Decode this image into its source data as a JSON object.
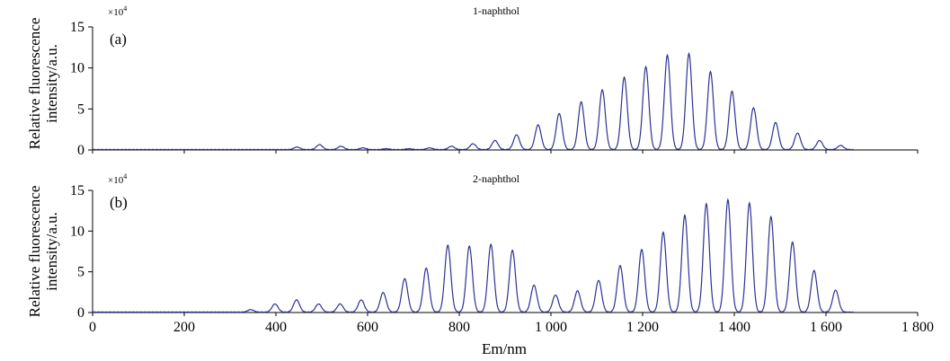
{
  "chart_data": [
    {
      "type": "line",
      "panel": "(a)",
      "title": "1-naphthol",
      "multiplier": "×10",
      "multiplier_exp": "4",
      "xlabel": "Em/nm",
      "ylabel": "Relative fluorescence intensity/a.u.",
      "xlim": [
        0,
        1800
      ],
      "ylim": [
        0,
        15
      ],
      "yticks": [
        0,
        5,
        10,
        15
      ],
      "ytick_labels": [
        "0",
        "5",
        "10",
        "15"
      ],
      "color": "#2e3192",
      "series": [
        {
          "peaks": [
            {
              "x": 446,
              "y": 0.3
            },
            {
              "x": 495,
              "y": 0.6
            },
            {
              "x": 542,
              "y": 0.4
            },
            {
              "x": 590,
              "y": 0.2
            },
            {
              "x": 640,
              "y": 0.1
            },
            {
              "x": 690,
              "y": 0.1
            },
            {
              "x": 735,
              "y": 0.2
            },
            {
              "x": 783,
              "y": 0.4
            },
            {
              "x": 830,
              "y": 0.7
            },
            {
              "x": 878,
              "y": 1.1
            },
            {
              "x": 925,
              "y": 1.8
            },
            {
              "x": 972,
              "y": 3.0
            },
            {
              "x": 1018,
              "y": 4.4
            },
            {
              "x": 1066,
              "y": 5.8
            },
            {
              "x": 1112,
              "y": 7.3
            },
            {
              "x": 1160,
              "y": 8.8
            },
            {
              "x": 1207,
              "y": 10.1
            },
            {
              "x": 1254,
              "y": 11.5
            },
            {
              "x": 1301,
              "y": 11.7
            },
            {
              "x": 1348,
              "y": 9.5
            },
            {
              "x": 1395,
              "y": 7.1
            },
            {
              "x": 1442,
              "y": 5.1
            },
            {
              "x": 1490,
              "y": 3.3
            },
            {
              "x": 1538,
              "y": 2.0
            },
            {
              "x": 1586,
              "y": 1.1
            },
            {
              "x": 1632,
              "y": 0.5
            }
          ]
        }
      ]
    },
    {
      "type": "line",
      "panel": "(b)",
      "title": "2-naphthol",
      "multiplier": "×10",
      "multiplier_exp": "4",
      "xlabel": "Em/nm",
      "ylabel": "Relative fluorescence intensity/a.u.",
      "xlim": [
        0,
        1800
      ],
      "ylim": [
        0,
        15
      ],
      "yticks": [
        0,
        5,
        10,
        15
      ],
      "ytick_labels": [
        "0",
        "5",
        "10",
        "15"
      ],
      "xticks": [
        0,
        200,
        400,
        600,
        800,
        1000,
        1200,
        1400,
        1600,
        1800
      ],
      "xtick_labels": [
        "0",
        "200",
        "400",
        "600",
        "800",
        "1 000",
        "1 200",
        "1 400",
        "1 600",
        "1 800"
      ],
      "color": "#2e3192",
      "series": [
        {
          "peaks": [
            {
              "x": 345,
              "y": 0.3
            },
            {
              "x": 398,
              "y": 1.0
            },
            {
              "x": 445,
              "y": 1.5
            },
            {
              "x": 493,
              "y": 1.0
            },
            {
              "x": 540,
              "y": 1.0
            },
            {
              "x": 586,
              "y": 1.5
            },
            {
              "x": 634,
              "y": 2.4
            },
            {
              "x": 681,
              "y": 4.1
            },
            {
              "x": 728,
              "y": 5.4
            },
            {
              "x": 775,
              "y": 8.2
            },
            {
              "x": 822,
              "y": 8.1
            },
            {
              "x": 869,
              "y": 8.3
            },
            {
              "x": 916,
              "y": 7.6
            },
            {
              "x": 963,
              "y": 3.3
            },
            {
              "x": 1010,
              "y": 2.1
            },
            {
              "x": 1058,
              "y": 2.6
            },
            {
              "x": 1104,
              "y": 3.9
            },
            {
              "x": 1151,
              "y": 5.7
            },
            {
              "x": 1198,
              "y": 7.7
            },
            {
              "x": 1245,
              "y": 9.8
            },
            {
              "x": 1292,
              "y": 11.9
            },
            {
              "x": 1339,
              "y": 13.3
            },
            {
              "x": 1386,
              "y": 13.8
            },
            {
              "x": 1433,
              "y": 13.4
            },
            {
              "x": 1480,
              "y": 11.7
            },
            {
              "x": 1527,
              "y": 8.6
            },
            {
              "x": 1574,
              "y": 5.1
            },
            {
              "x": 1621,
              "y": 2.7
            }
          ]
        }
      ]
    }
  ]
}
